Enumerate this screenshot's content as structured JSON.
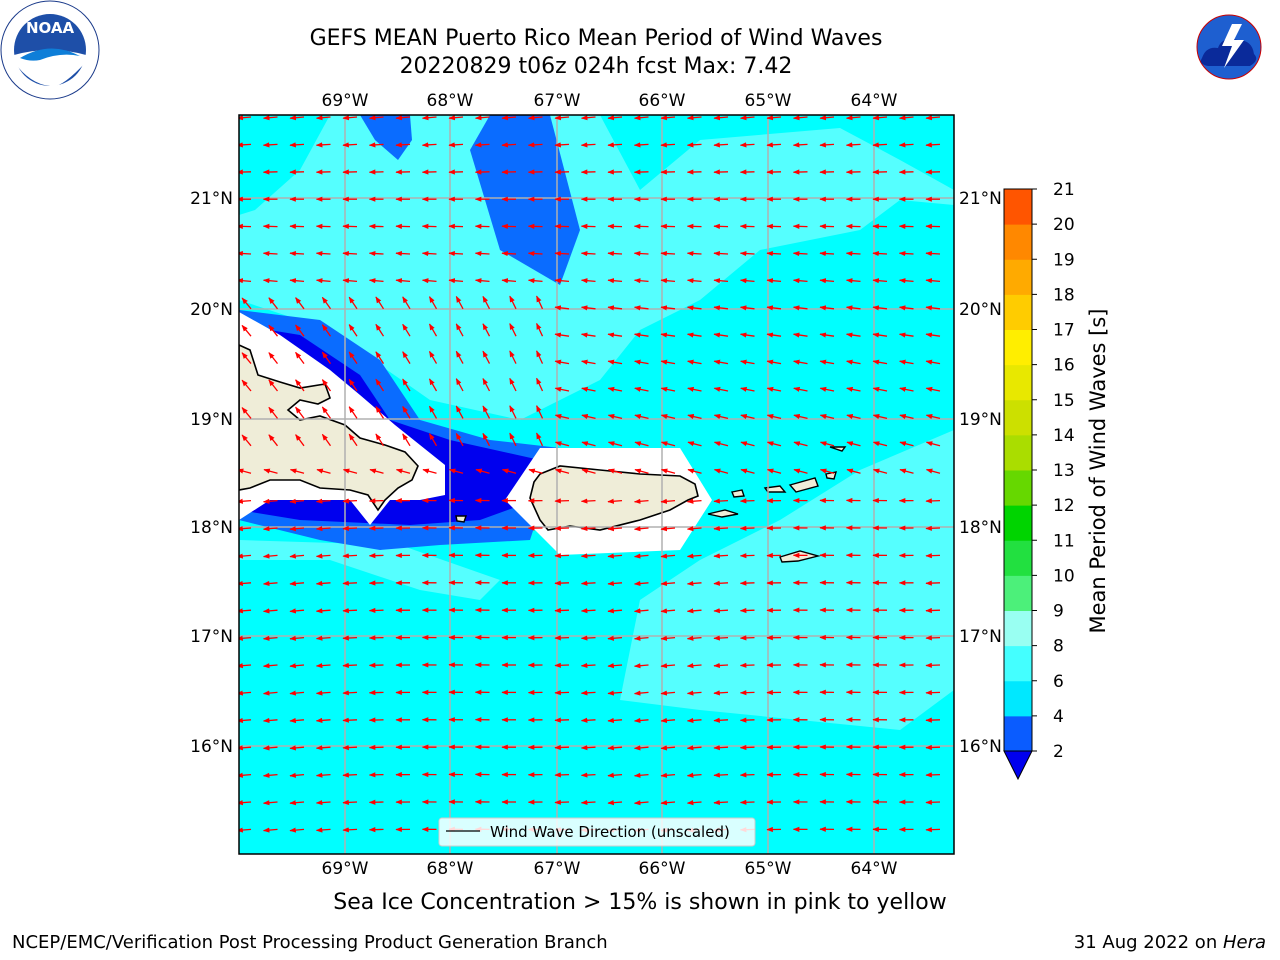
{
  "title_line1": "GEFS MEAN Puerto Rico Mean Period of Wind Waves",
  "title_line2": "20220829 t06z 024h fcst   Max: 7.42",
  "note": "Sea Ice Concentration > 15% is shown in pink to yellow",
  "footer_left": "NCEP/EMC/Verification Post Processing Product Generation Branch",
  "footer_date": "31 Aug 2022 on ",
  "footer_host": "Hera",
  "legend_label": "Wind Wave Direction (unscaled)",
  "colorbar_label": "Mean Period of Wind Waves [s]",
  "colorbar_ticks": [
    "2",
    "4",
    "6",
    "8",
    "9",
    "10",
    "11",
    "12",
    "13",
    "14",
    "15",
    "16",
    "17",
    "18",
    "19",
    "20",
    "21"
  ],
  "colorbar_colors": [
    "#0a5cff",
    "#00e8ff",
    "#44ffff",
    "#99fff2",
    "#4cf07a",
    "#22e040",
    "#00d400",
    "#66d800",
    "#aadd00",
    "#cce000",
    "#e8e800",
    "#ffee00",
    "#ffcc00",
    "#ffaa00",
    "#ff8800",
    "#ff5500",
    "#ff2200",
    "#ff0000"
  ],
  "lon_labels": [
    "69°W",
    "68°W",
    "67°W",
    "66°W",
    "65°W",
    "64°W"
  ],
  "lat_labels": [
    "21°N",
    "20°N",
    "19°N",
    "18°N",
    "17°N",
    "16°N"
  ],
  "logos": {
    "left": "NOAA",
    "right": "NATIONAL WEATHER SERVICE"
  },
  "colors": {
    "ocean_base": "#00ffff",
    "ocean_light": "#55ffff",
    "ocean_mid": "#0a6cff",
    "ocean_deep": "#0000ee",
    "land": "#efedd8",
    "arrow": "#ff0000",
    "grid": "#b0b0b0"
  }
}
